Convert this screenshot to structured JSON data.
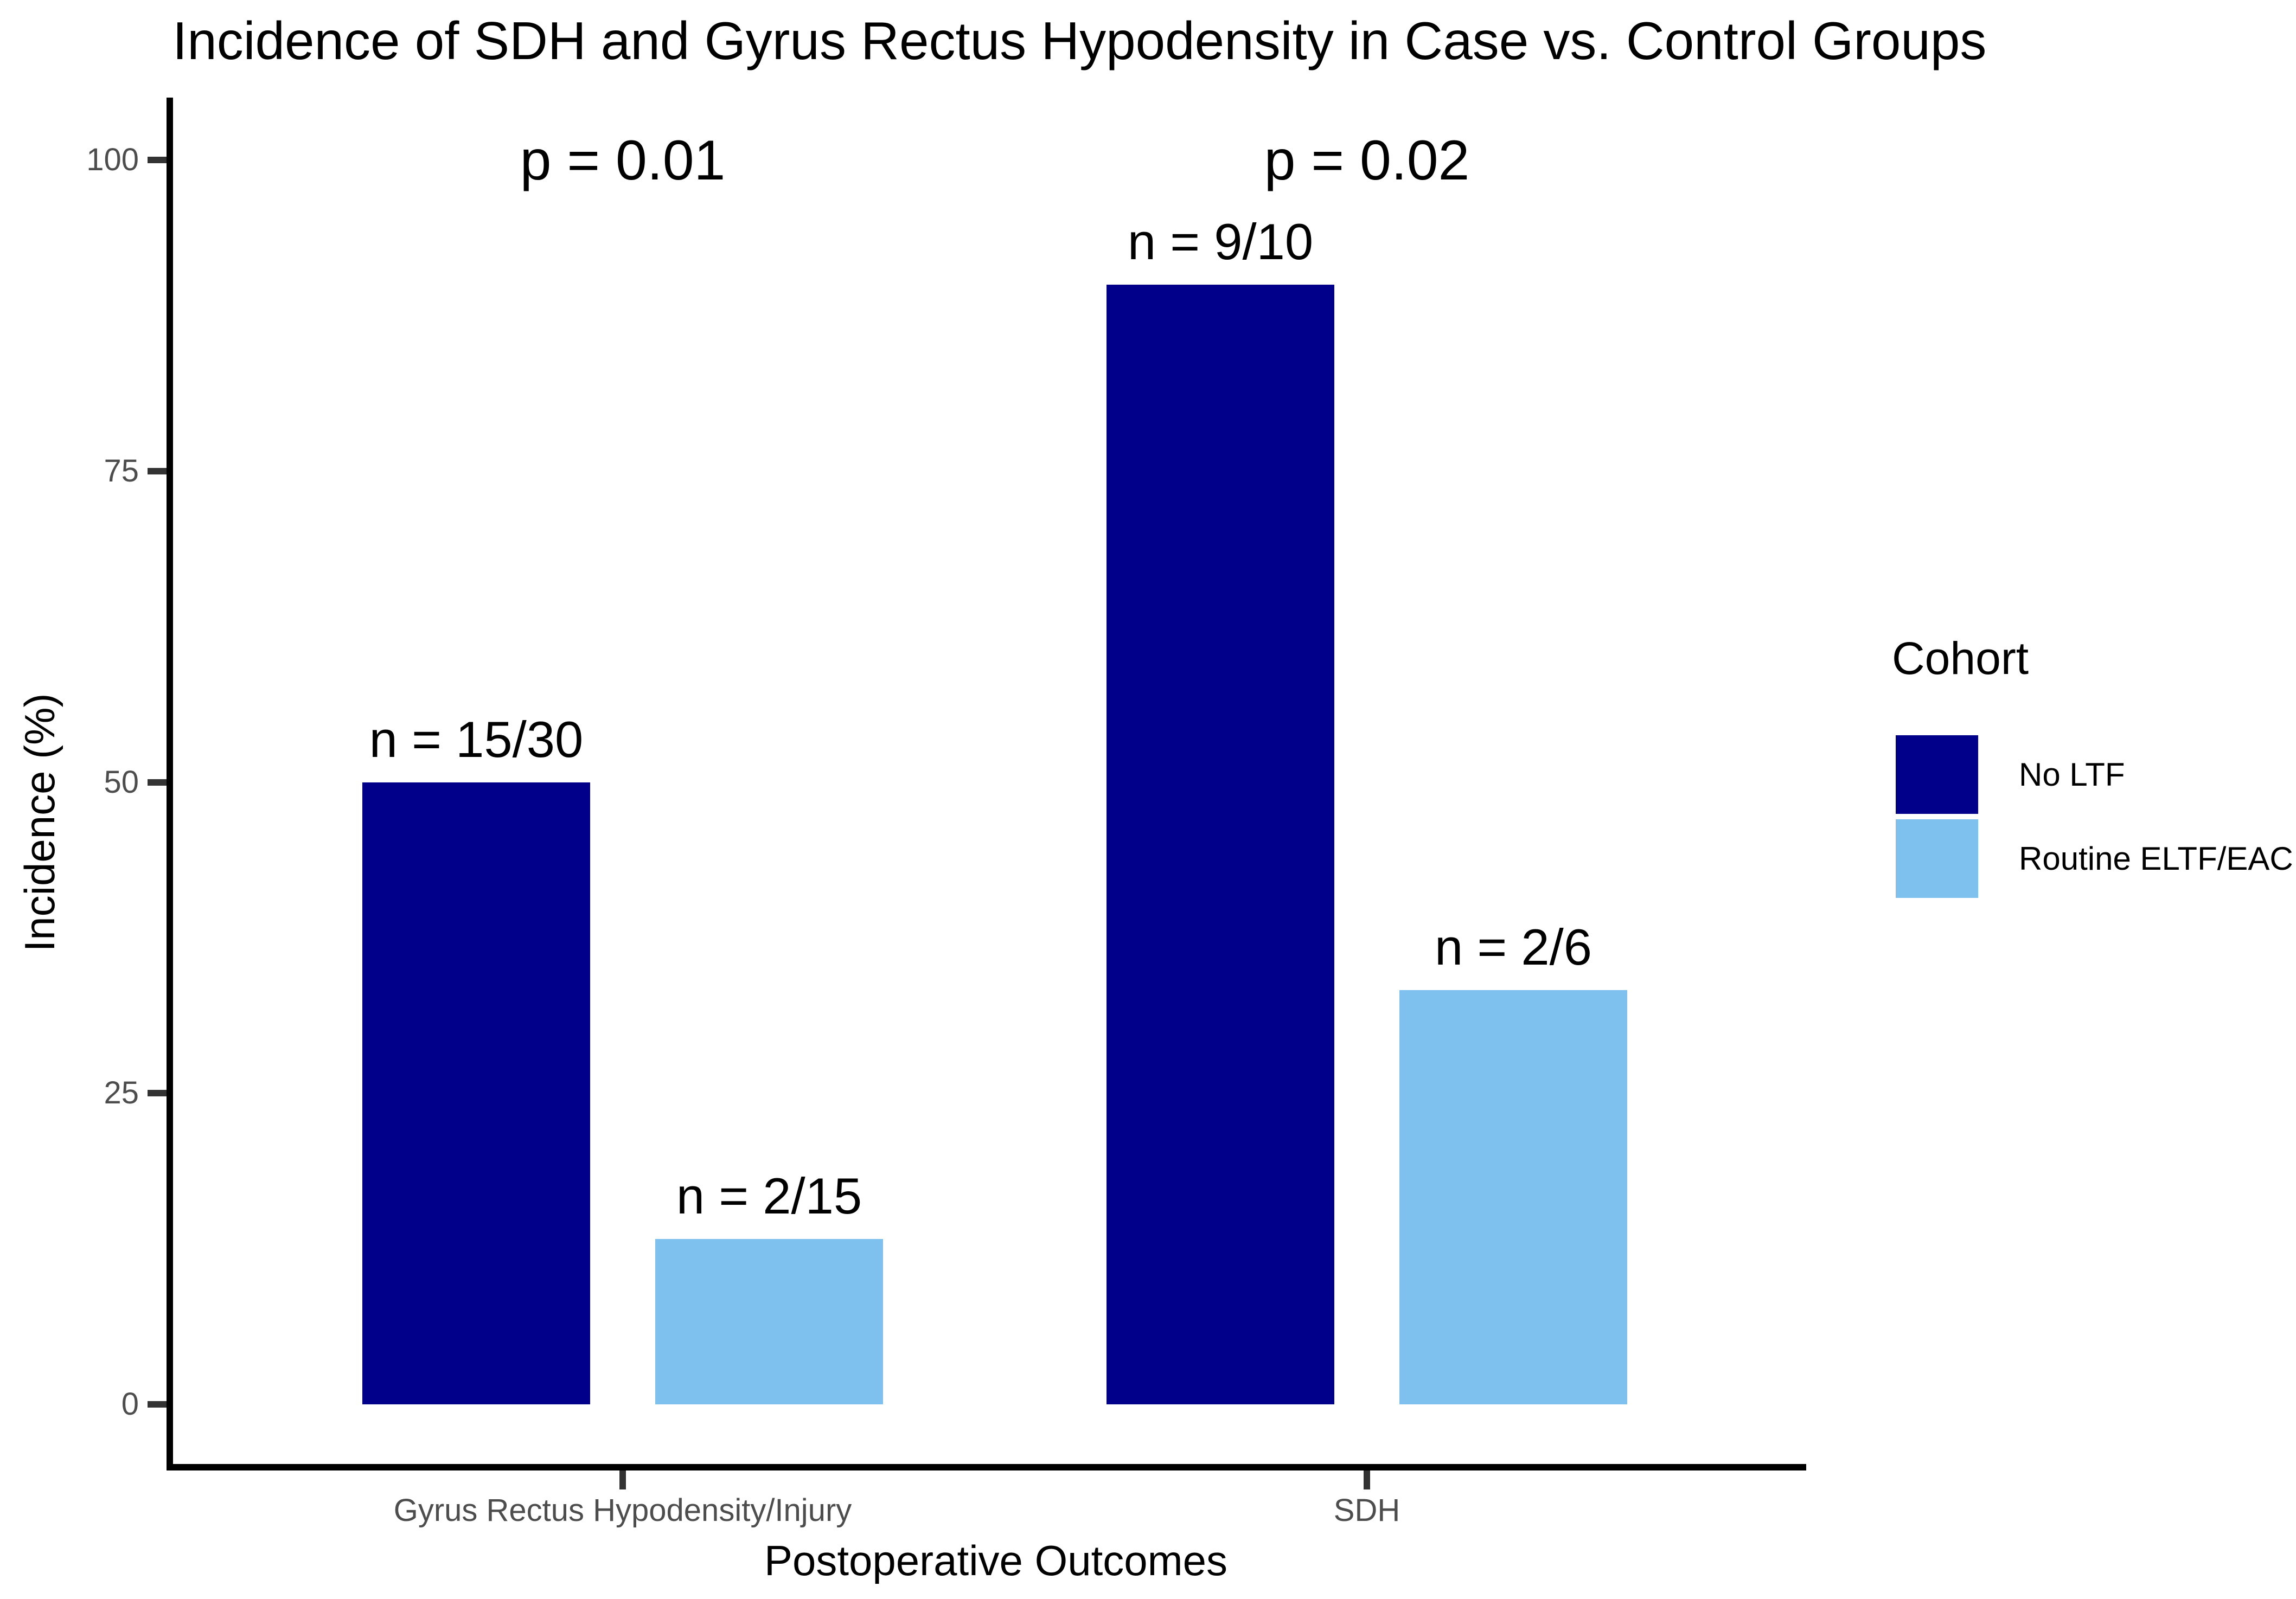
{
  "chart_data": {
    "type": "bar",
    "title": "Incidence of SDH and Gyrus Rectus Hypodensity in Case vs. Control Groups",
    "xlabel": "Postoperative Outcomes",
    "ylabel": "Incidence (%)",
    "ylim": [
      0,
      100
    ],
    "yticks": [
      0,
      25,
      50,
      75,
      100
    ],
    "grid": false,
    "legend_title": "Cohort",
    "legend_position": "right",
    "categories": [
      "Gyrus Rectus Hypodensity/Injury",
      "SDH"
    ],
    "series": [
      {
        "name": "No LTF",
        "color": "#00008B",
        "values": [
          50,
          90
        ],
        "bar_labels": [
          "n = 15/30",
          "n = 9/10"
        ]
      },
      {
        "name": "Routine ELTF/EAC",
        "color": "#7EC0EE",
        "values": [
          13.3,
          33.3
        ],
        "bar_labels": [
          "n = 2/15",
          "n = 2/6"
        ]
      }
    ],
    "annotations": [
      {
        "text": "p = 0.01",
        "category": "Gyrus Rectus Hypodensity/Injury"
      },
      {
        "text": "p = 0.02",
        "category": "SDH"
      }
    ],
    "colors": {
      "axis_text": "#4D4D4D",
      "axis_line": "#000000",
      "tick_mark": "#333333",
      "background": "#FFFFFF"
    }
  }
}
